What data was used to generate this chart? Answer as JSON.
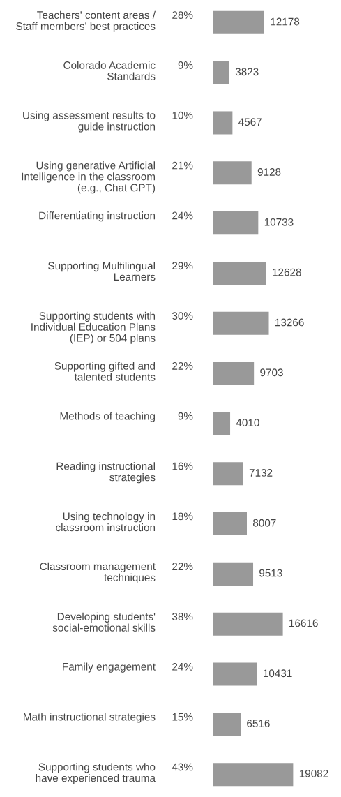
{
  "chart_data": {
    "type": "bar",
    "orientation": "horizontal",
    "color": "#999999",
    "data_labels": true,
    "tick_labels": false,
    "categories": [
      "Teachers' content areas / Staff members' best practices",
      "Colorado Academic Standards",
      "Using assessment results to guide instruction",
      "Using generative Artificial Intelligence in the classroom (e.g., Chat GPT)",
      "Differentiating instruction",
      "Supporting Multilingual Learners",
      "Supporting students with Individual Education Plans (IEP) or 504 plans",
      "Supporting gifted and talented students",
      "Methods of teaching",
      "Reading instructional strategies",
      "Using technology in classroom instruction",
      "Classroom management techniques",
      "Developing students' social-emotional skills",
      "Family engagement",
      "Math instructional strategies",
      "Supporting students who have experienced trauma"
    ],
    "values": [
      12178,
      3823,
      4567,
      9128,
      10733,
      12628,
      13266,
      9703,
      4010,
      7132,
      8007,
      9513,
      16616,
      10431,
      6516,
      19082
    ],
    "annotations": [
      "28%",
      "9%",
      "10%",
      "21%",
      "24%",
      "29%",
      "30%",
      "22%",
      "9%",
      "16%",
      "18%",
      "22%",
      "38%",
      "24%",
      "15%",
      "43%"
    ]
  }
}
